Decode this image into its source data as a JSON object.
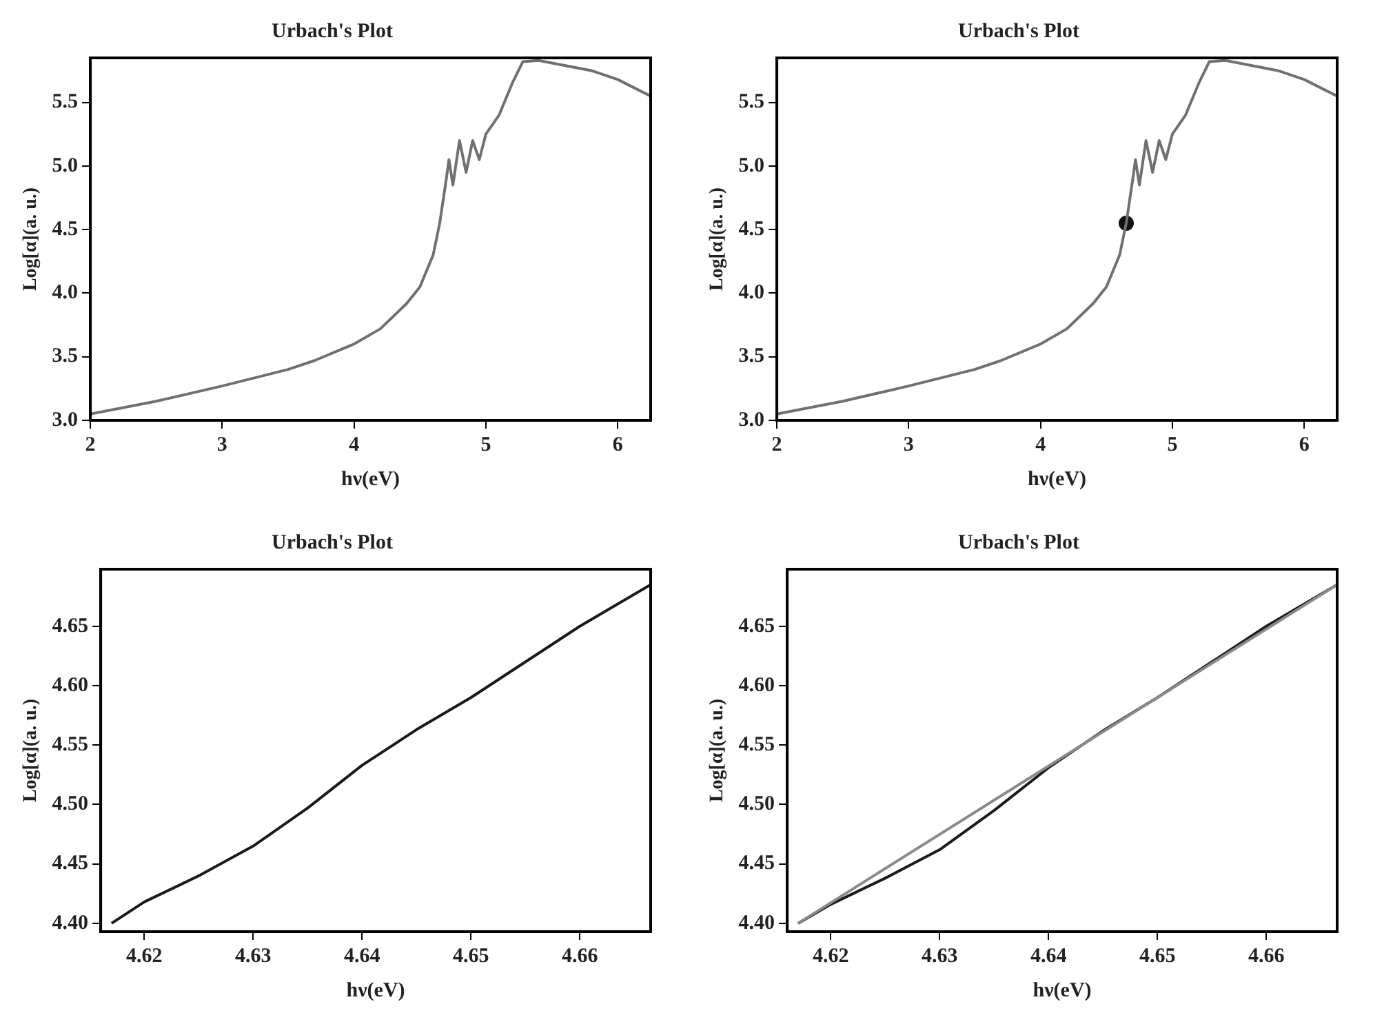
{
  "chart_data": [
    {
      "type": "line",
      "title": "Urbach's Plot",
      "xlabel": "hν(eV)",
      "ylabel": "Log[α](a. u.)",
      "xlim": [
        2,
        6.25
      ],
      "ylim": [
        3.0,
        5.85
      ],
      "xticks": [
        2,
        3,
        4,
        5,
        6
      ],
      "yticks": [
        {
          "value": 3,
          "label": "3.0"
        },
        3.5,
        {
          "value": 4,
          "label": "4.0"
        },
        4.5,
        {
          "value": 5,
          "label": "5.0"
        },
        5.5
      ],
      "legend": false,
      "marker": "none",
      "series": [
        {
          "color": "#707070",
          "x": [
            2,
            2.5,
            3,
            3.5,
            3.7,
            4,
            4.2,
            4.4,
            4.5,
            4.6,
            4.65,
            4.7,
            4.72,
            4.75,
            4.8,
            4.85,
            4.9,
            4.95,
            5.0,
            5.1,
            5.2,
            5.28,
            5.4,
            5.8,
            6.0,
            6.25
          ],
          "values": [
            3.05,
            3.15,
            3.27,
            3.4,
            3.47,
            3.6,
            3.72,
            3.92,
            4.05,
            4.3,
            4.55,
            4.9,
            5.05,
            4.85,
            5.2,
            4.95,
            5.2,
            5.05,
            5.25,
            5.4,
            5.65,
            5.82,
            5.83,
            5.75,
            5.68,
            5.55
          ]
        }
      ]
    },
    {
      "type": "line",
      "title": "Urbach's Plot",
      "xlabel": "hν(eV)",
      "ylabel": "Log[α](a. u.)",
      "xlim": [
        2,
        6.25
      ],
      "ylim": [
        3.0,
        5.85
      ],
      "xticks": [
        2,
        3,
        4,
        5,
        6
      ],
      "yticks": [
        {
          "value": 3,
          "label": "3.0"
        },
        3.5,
        {
          "value": 4,
          "label": "4.0"
        },
        4.5,
        {
          "value": 5,
          "label": "5.0"
        },
        5.5
      ],
      "legend": false,
      "marker": "none",
      "series": [
        {
          "color": "#707070",
          "x": [
            2,
            2.5,
            3,
            3.5,
            3.7,
            4,
            4.2,
            4.4,
            4.5,
            4.6,
            4.65,
            4.7,
            4.72,
            4.75,
            4.8,
            4.85,
            4.9,
            4.95,
            5.0,
            5.1,
            5.2,
            5.28,
            5.4,
            5.8,
            6.0,
            6.25
          ],
          "values": [
            3.05,
            3.15,
            3.27,
            3.4,
            3.47,
            3.6,
            3.72,
            3.92,
            4.05,
            4.3,
            4.55,
            4.9,
            5.05,
            4.85,
            5.2,
            4.95,
            5.2,
            5.05,
            5.25,
            5.4,
            5.65,
            5.82,
            5.83,
            5.75,
            5.68,
            5.55
          ]
        },
        {
          "type": "scatter",
          "marker": "circle",
          "color": "#111111",
          "x": [
            4.65
          ],
          "values": [
            4.55
          ]
        }
      ]
    },
    {
      "type": "line",
      "title": "Urbach's Plot",
      "xlabel": "hν(eV)",
      "ylabel": "Log[α](a. u.)",
      "xlim": [
        4.616,
        4.6665
      ],
      "ylim": [
        4.393,
        4.698
      ],
      "xticks": [
        4.62,
        4.63,
        4.64,
        4.65,
        4.66
      ],
      "yticks": [
        {
          "value": 4.4,
          "label": "4.40"
        },
        4.45,
        {
          "value": 4.5,
          "label": "4.50"
        },
        4.55,
        {
          "value": 4.6,
          "label": "4.60"
        },
        4.65
      ],
      "legend": false,
      "marker": "none",
      "series": [
        {
          "color": "#1a1a1a",
          "x": [
            4.617,
            4.62,
            4.625,
            4.63,
            4.635,
            4.64,
            4.645,
            4.65,
            4.655,
            4.66,
            4.6665
          ],
          "values": [
            4.4,
            4.418,
            4.44,
            4.465,
            4.497,
            4.533,
            4.563,
            4.59,
            4.62,
            4.65,
            4.685
          ]
        }
      ]
    },
    {
      "type": "line",
      "title": "Urbach's Plot",
      "xlabel": "hν(eV)",
      "ylabel": "Log[α](a. u.)",
      "xlim": [
        4.616,
        4.6665
      ],
      "ylim": [
        4.393,
        4.698
      ],
      "xticks": [
        4.62,
        4.63,
        4.64,
        4.65,
        4.66
      ],
      "yticks": [
        {
          "value": 4.4,
          "label": "4.40"
        },
        4.45,
        {
          "value": 4.5,
          "label": "4.50"
        },
        4.55,
        {
          "value": 4.6,
          "label": "4.60"
        },
        4.65
      ],
      "legend": false,
      "marker": "none",
      "series": [
        {
          "color": "#8a8a8a",
          "x": [
            4.617,
            4.6665
          ],
          "values": [
            4.4,
            4.685
          ]
        },
        {
          "color": "#1a1a1a",
          "x": [
            4.617,
            4.62,
            4.625,
            4.63,
            4.635,
            4.64,
            4.645,
            4.65,
            4.655,
            4.66,
            4.6665
          ],
          "values": [
            4.4,
            4.416,
            4.438,
            4.462,
            4.495,
            4.531,
            4.562,
            4.59,
            4.62,
            4.65,
            4.685
          ]
        }
      ]
    }
  ]
}
